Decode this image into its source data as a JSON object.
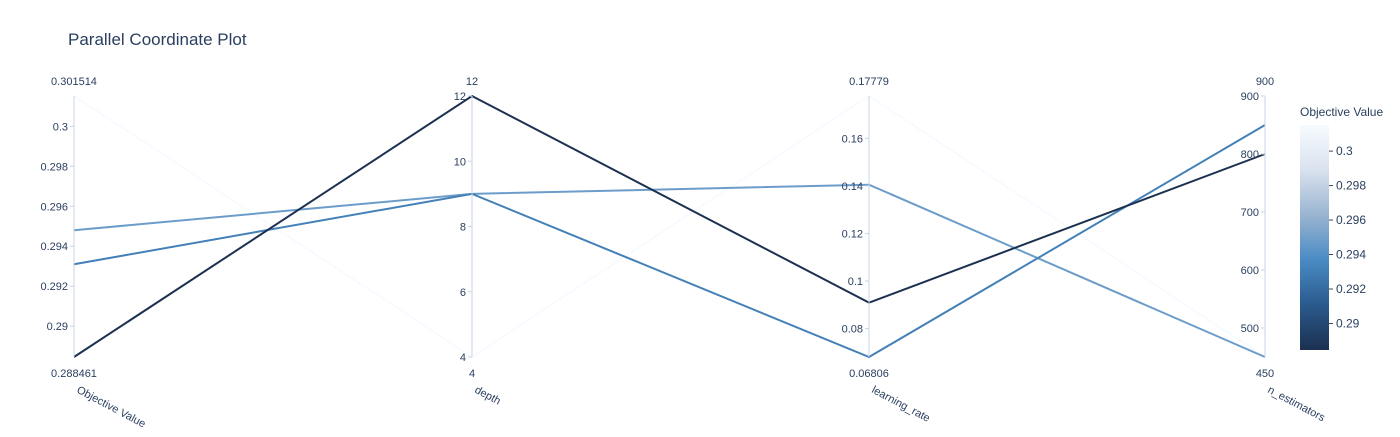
{
  "chart_data": {
    "type": "parallel_coordinates",
    "title": "Parallel Coordinate Plot",
    "dimensions": [
      {
        "label": "Objective Value",
        "range": [
          0.288461,
          0.301514
        ],
        "range_labels": [
          "0.288461",
          "0.301514"
        ],
        "ticks": [
          0.29,
          0.292,
          0.294,
          0.296,
          0.298,
          0.3
        ],
        "tick_labels": [
          "0.29",
          "0.292",
          "0.294",
          "0.296",
          "0.298",
          "0.3"
        ]
      },
      {
        "label": "depth",
        "range": [
          4,
          12
        ],
        "range_labels": [
          "4",
          "12"
        ],
        "ticks": [
          4,
          6,
          8,
          10,
          12
        ],
        "tick_labels": [
          "4",
          "6",
          "8",
          "10",
          "12"
        ]
      },
      {
        "label": "learning_rate",
        "range": [
          0.06806,
          0.17779
        ],
        "range_labels": [
          "0.06806",
          "0.17779"
        ],
        "ticks": [
          0.08,
          0.1,
          0.12,
          0.14,
          0.16
        ],
        "tick_labels": [
          "0.08",
          "0.1",
          "0.12",
          "0.14",
          "0.16"
        ]
      },
      {
        "label": "n_estimators",
        "range": [
          450,
          900
        ],
        "range_labels": [
          "450",
          "900"
        ],
        "ticks": [
          500,
          600,
          700,
          800,
          900
        ],
        "tick_labels": [
          "500",
          "600",
          "700",
          "800",
          "900"
        ]
      }
    ],
    "lines": [
      {
        "values": [
          0.301514,
          4,
          0.17779,
          450
        ]
      },
      {
        "values": [
          0.2948,
          9,
          0.1405,
          450
        ]
      },
      {
        "values": [
          0.2931,
          9,
          0.06806,
          850
        ]
      },
      {
        "values": [
          0.288461,
          12,
          0.0909,
          800
        ]
      }
    ],
    "colorbar": {
      "title": "Objective Value",
      "range": [
        0.288461,
        0.301514
      ],
      "ticks": [
        0.29,
        0.292,
        0.294,
        0.296,
        0.298,
        0.3
      ],
      "tick_labels": [
        "0.29",
        "0.292",
        "0.294",
        "0.296",
        "0.298",
        "0.3"
      ],
      "colorscale": [
        "#1c3050",
        "#2a5a8c",
        "#4a8bc5",
        "#9ab4d0",
        "#d9e2ee",
        "#f7fbff"
      ]
    }
  }
}
